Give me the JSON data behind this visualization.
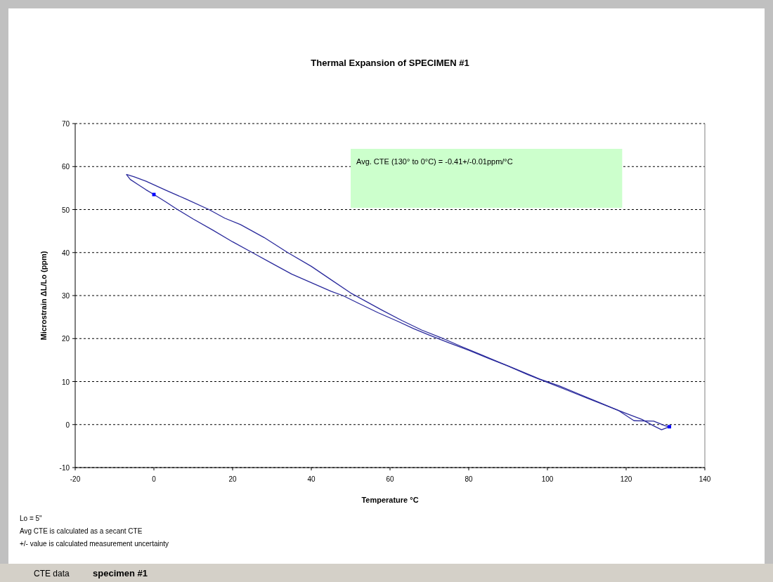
{
  "chart_data": {
    "type": "line",
    "title": "Thermal Expansion of SPECIMEN #1",
    "xlabel": "Temperature °C",
    "ylabel": "Microstrain ΔL/Lo (ppm)",
    "xlim": [
      -20,
      140
    ],
    "xticks": [
      -20,
      0,
      20,
      40,
      60,
      80,
      100,
      120,
      140
    ],
    "ylim": [
      -10,
      70
    ],
    "yticks": [
      -10,
      0,
      10,
      20,
      30,
      40,
      50,
      60,
      70
    ],
    "grid": "y",
    "line_style": "solid",
    "marker": "none",
    "series": [
      {
        "type": "line",
        "color": "#2a2a9c",
        "x": [
          -7,
          -6,
          -4,
          -2,
          0,
          3,
          6,
          10,
          15,
          20,
          25,
          30,
          35,
          40,
          45,
          48,
          52,
          57,
          62,
          66,
          70,
          75,
          80,
          85,
          90,
          95,
          100,
          105,
          110,
          115,
          120,
          124,
          127,
          129,
          131
        ],
        "values": [
          58.2,
          57,
          55.8,
          54.6,
          53.5,
          51.8,
          50,
          47.8,
          45.2,
          42.5,
          40,
          37.5,
          35,
          33,
          31,
          30,
          28.2,
          26,
          24,
          22.3,
          20.8,
          19,
          17.3,
          15.4,
          13.6,
          11.6,
          9.8,
          8,
          6.2,
          4.4,
          2.6,
          1.2,
          -0.3,
          -1.2,
          -0.5
        ]
      },
      {
        "type": "line",
        "color": "#2a2a9c",
        "x": [
          -7,
          -5,
          -2,
          3,
          8,
          14,
          18,
          22,
          28,
          34,
          40,
          45,
          50,
          54,
          58,
          63,
          68,
          73,
          78,
          83,
          88,
          93,
          98,
          103,
          108,
          113,
          118,
          122,
          127,
          130,
          131
        ],
        "values": [
          58.2,
          57.6,
          56.6,
          54.5,
          52.5,
          50,
          48,
          46.5,
          43.5,
          40,
          36.8,
          33.7,
          30.6,
          28.6,
          26.6,
          24.2,
          22,
          20.2,
          18.2,
          16.3,
          14.4,
          12.5,
          10.6,
          9,
          7.1,
          5.2,
          3.3,
          0.9,
          0.8,
          -0.3,
          -0.5
        ]
      },
      {
        "type": "scatter",
        "color": "#0000ff",
        "marker": "square",
        "x": [
          0,
          131
        ],
        "values": [
          53.5,
          -0.5
        ]
      }
    ],
    "annotations": [
      "Avg. CTE (130° to 0°C) = -0.41+/-0.01ppm/°C",
      "Lo = 5\"",
      "Avg CTE is calculated as a secant CTE",
      "+/- value is calculated measurement uncertainty",
      "CTE data",
      "specimen #1"
    ]
  }
}
